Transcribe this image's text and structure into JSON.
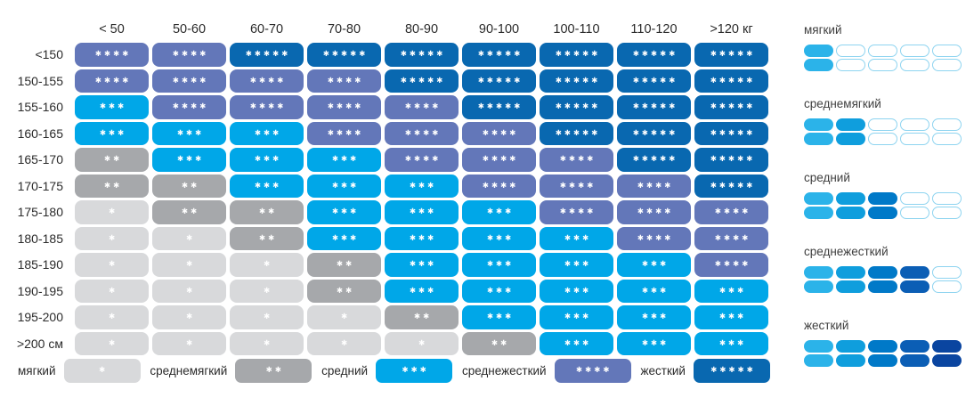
{
  "chart_data": {
    "type": "heatmap",
    "title": "",
    "xlabel_units": "кг",
    "ylabel_units": "см",
    "x_categories": [
      "< 50",
      "50-60",
      "60-70",
      "70-80",
      "80-90",
      "90-100",
      "100-110",
      "110-120",
      ">120 кг"
    ],
    "y_categories": [
      "<150",
      "150-155",
      "155-160",
      "160-165",
      "165-170",
      "170-175",
      "175-180",
      "180-185",
      "185-190",
      "190-195",
      "195-200",
      ">200 см"
    ],
    "values": [
      [
        4,
        4,
        5,
        5,
        5,
        5,
        5,
        5,
        5
      ],
      [
        4,
        4,
        4,
        4,
        5,
        5,
        5,
        5,
        5
      ],
      [
        3,
        4,
        4,
        4,
        4,
        5,
        5,
        5,
        5
      ],
      [
        3,
        3,
        3,
        4,
        4,
        4,
        5,
        5,
        5
      ],
      [
        2,
        3,
        3,
        3,
        4,
        4,
        4,
        5,
        5
      ],
      [
        2,
        2,
        3,
        3,
        3,
        4,
        4,
        4,
        5
      ],
      [
        1,
        2,
        2,
        3,
        3,
        3,
        4,
        4,
        4
      ],
      [
        1,
        1,
        2,
        3,
        3,
        3,
        3,
        4,
        4
      ],
      [
        1,
        1,
        1,
        2,
        3,
        3,
        3,
        3,
        4
      ],
      [
        1,
        1,
        1,
        2,
        3,
        3,
        3,
        3,
        3
      ],
      [
        1,
        1,
        1,
        1,
        2,
        3,
        3,
        3,
        3
      ],
      [
        1,
        1,
        1,
        1,
        1,
        2,
        3,
        3,
        3
      ]
    ],
    "levels": [
      {
        "value": 1,
        "name": "мягкий",
        "color": "#d8d9db",
        "stars": "✱"
      },
      {
        "value": 2,
        "name": "среднемягкий",
        "color": "#a6a8ab",
        "stars": "✱✱"
      },
      {
        "value": 3,
        "name": "средний",
        "color": "#00a7e8",
        "stars": "✱✱✱"
      },
      {
        "value": 4,
        "name": "среднежесткий",
        "color": "#6377b9",
        "stars": "✱✱✱✱"
      },
      {
        "value": 5,
        "name": "жесткий",
        "color": "#0968b0",
        "stars": "✱✱✱✱✱"
      }
    ],
    "legend_position": "bottom",
    "grid": false
  },
  "scale_panel": {
    "groups": [
      {
        "label": "мягкий",
        "filled": 1
      },
      {
        "label": "среднемягкий",
        "filled": 2
      },
      {
        "label": "средний",
        "filled": 3
      },
      {
        "label": "среднежесткий",
        "filled": 4
      },
      {
        "label": "жесткий",
        "filled": 5
      }
    ],
    "total_pills": 5,
    "ramp": [
      "#2bb3e9",
      "#0f9edd",
      "#0079c8",
      "#0b5eb5",
      "#0a45a0"
    ],
    "outline_color": "#8ed4f0"
  },
  "star_color": "#ffffff"
}
